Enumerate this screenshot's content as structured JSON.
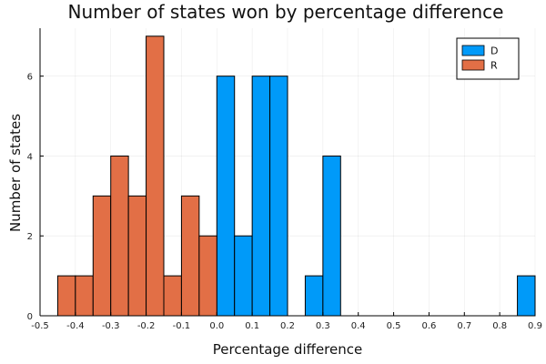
{
  "chart_data": {
    "type": "bar",
    "title": "Number of states won by percentage difference",
    "xlabel": "Percentage difference",
    "ylabel": "Number of states",
    "xlim": [
      -0.5,
      0.9
    ],
    "ylim": [
      0,
      7
    ],
    "bin_width": 0.05,
    "x_ticks": [
      -0.5,
      -0.4,
      -0.3,
      -0.2,
      -0.1,
      0.0,
      0.1,
      0.2,
      0.3,
      0.4,
      0.5,
      0.6,
      0.7,
      0.8,
      0.9
    ],
    "x_tick_labels": [
      "-0.5",
      "-0.4",
      "-0.3",
      "-0.2",
      "-0.1",
      "0.0",
      "0.1",
      "0.2",
      "0.3",
      "0.4",
      "0.5",
      "0.6",
      "0.7",
      "0.8",
      "0.9"
    ],
    "y_ticks": [
      0,
      2,
      4,
      6
    ],
    "y_tick_labels": [
      "0",
      "2",
      "4",
      "6"
    ],
    "grid": true,
    "legend": "top-right",
    "series": [
      {
        "name": "D",
        "color": "#009af9",
        "bin_starts": [
          0.0,
          0.05,
          0.1,
          0.15,
          0.2,
          0.25,
          0.3,
          0.35,
          0.4,
          0.45,
          0.5,
          0.55,
          0.6,
          0.65,
          0.7,
          0.75,
          0.8,
          0.85
        ],
        "values": [
          6,
          2,
          6,
          6,
          0,
          1,
          4,
          0,
          0,
          0,
          0,
          0,
          0,
          0,
          0,
          0,
          0,
          1
        ]
      },
      {
        "name": "R",
        "color": "#e26f46",
        "bin_starts": [
          -0.45,
          -0.4,
          -0.35,
          -0.3,
          -0.25,
          -0.2,
          -0.15,
          -0.1,
          -0.05
        ],
        "values": [
          1,
          1,
          3,
          4,
          3,
          7,
          1,
          3,
          2
        ]
      }
    ]
  }
}
